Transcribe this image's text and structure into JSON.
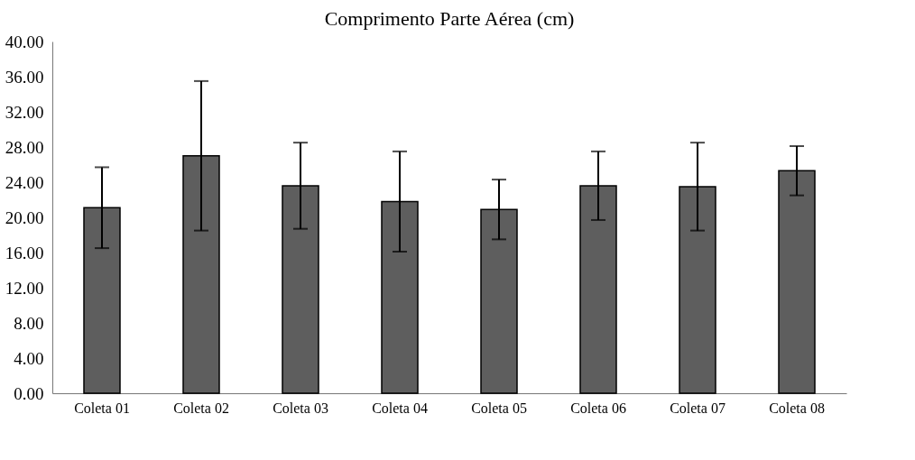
{
  "chart_data": {
    "type": "bar",
    "title": "Comprimento  Parte Aérea (cm)",
    "categories": [
      "Coleta 01",
      "Coleta 02",
      "Coleta 03",
      "Coleta 04",
      "Coleta 05",
      "Coleta 06",
      "Coleta 07",
      "Coleta 08"
    ],
    "values": [
      21.1,
      27.0,
      23.6,
      21.8,
      20.9,
      23.6,
      23.5,
      25.3
    ],
    "errors": [
      4.6,
      8.5,
      4.9,
      5.7,
      3.4,
      3.9,
      5.0,
      2.8
    ],
    "color": "#5e5e5e",
    "ylim": [
      0,
      40
    ],
    "yticks": [
      {
        "value": 0,
        "label": "0.00"
      },
      {
        "value": 4,
        "label": "4.00"
      },
      {
        "value": 8,
        "label": "8.00"
      },
      {
        "value": 12,
        "label": "12.00"
      },
      {
        "value": 16,
        "label": "16.00"
      },
      {
        "value": 20,
        "label": "20.00"
      },
      {
        "value": 24,
        "label": "24.00"
      },
      {
        "value": 28,
        "label": "28.00"
      },
      {
        "value": 32,
        "label": "32.00"
      },
      {
        "value": 36,
        "label": "36.00"
      },
      {
        "value": 40,
        "label": "40.00"
      }
    ],
    "grid": false
  }
}
